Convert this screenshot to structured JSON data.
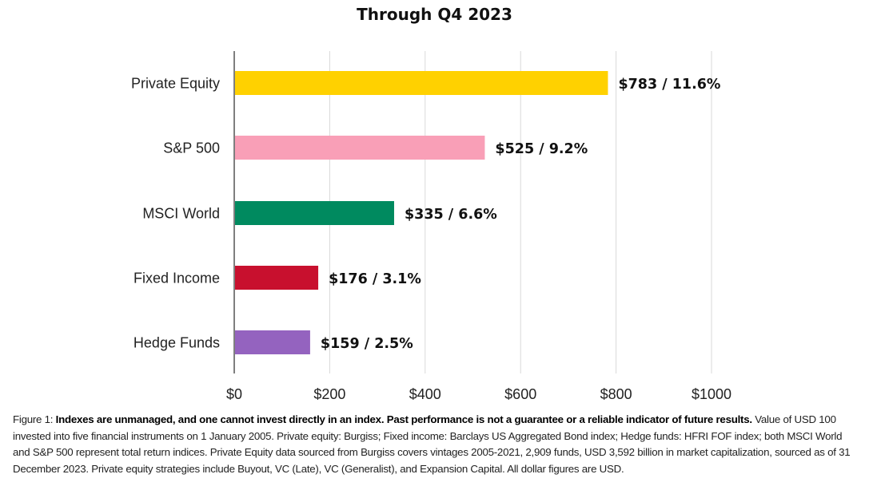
{
  "chart_data": {
    "type": "bar",
    "orientation": "horizontal",
    "title": "Through Q4 2023",
    "xlabel": "",
    "ylabel": "",
    "xlim": [
      0,
      1000
    ],
    "x_ticks": [
      0,
      200,
      400,
      600,
      800,
      1000
    ],
    "x_tick_labels": [
      "$0",
      "$200",
      "$400",
      "$600",
      "$800",
      "$1000"
    ],
    "grid": "vertical",
    "categories": [
      "Private Equity",
      "S&P 500",
      "MSCI World",
      "Fixed Income",
      "Hedge Funds"
    ],
    "values": [
      783,
      525,
      335,
      176,
      159
    ],
    "annualized_returns_pct": [
      11.6,
      9.2,
      6.6,
      3.1,
      2.5
    ],
    "data_labels": [
      "$783 / 11.6%",
      "$525 / 9.2%",
      "$335 / 6.6%",
      "$176 / 3.1%",
      "$159 / 2.5%"
    ],
    "colors": [
      "#FFD100",
      "#F99FB7",
      "#008A5F",
      "#C8102E",
      "#9463BF"
    ]
  },
  "caption": {
    "prefix": "Figure 1: ",
    "bold": "Indexes are unmanaged, and one cannot invest directly in an index. Past performance is not a guarantee or a reliable indicator of future results.",
    "rest": " Value of USD 100 invested into five financial instruments on 1 January 2005. Private equity: Burgiss; Fixed income: Barclays US Aggregated Bond index; Hedge funds: HFRI FOF index; both MSCI World and S&P 500 represent total return indices. Private Equity data sourced from Burgiss covers vintages 2005-2021, 2,909 funds, USD 3,592 billion in market capitalization, sourced as of 31 December 2023. Private equity strategies include Buyout, VC (Late), VC (Generalist), and Expansion Capital. All dollar figures are USD."
  }
}
